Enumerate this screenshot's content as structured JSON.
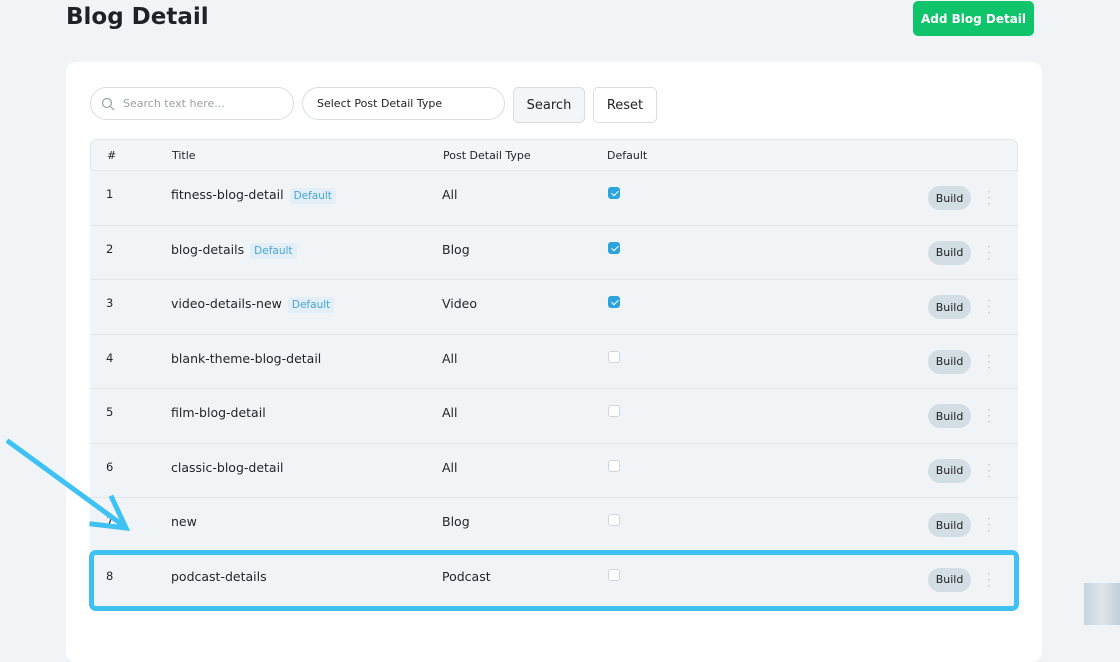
{
  "page": {
    "title": "Blog Detail",
    "add_button": "Add Blog Detail"
  },
  "filters": {
    "search_placeholder": "Search text here...",
    "select_label": "Select Post Detail Type",
    "search_button": "Search",
    "reset_button": "Reset"
  },
  "table": {
    "headers": {
      "num": "#",
      "title": "Title",
      "type": "Post Detail Type",
      "default": "Default"
    },
    "build_label": "Build",
    "rows": [
      {
        "num": "1",
        "title": "fitness-blog-detail",
        "badge": "Default",
        "type": "All",
        "default": true
      },
      {
        "num": "2",
        "title": "blog-details",
        "badge": "Default",
        "type": "Blog",
        "default": true
      },
      {
        "num": "3",
        "title": "video-details-new",
        "badge": "Default",
        "type": "Video",
        "default": true
      },
      {
        "num": "4",
        "title": "blank-theme-blog-detail",
        "badge": null,
        "type": "All",
        "default": false
      },
      {
        "num": "5",
        "title": "film-blog-detail",
        "badge": null,
        "type": "All",
        "default": false
      },
      {
        "num": "6",
        "title": "classic-blog-detail",
        "badge": null,
        "type": "All",
        "default": false
      },
      {
        "num": "7",
        "title": "new",
        "badge": null,
        "type": "Blog",
        "default": false
      },
      {
        "num": "8",
        "title": "podcast-details",
        "badge": null,
        "type": "Podcast",
        "default": false
      }
    ]
  },
  "annotation": {
    "color": "#3ec2f3",
    "highlighted_row": "8"
  }
}
